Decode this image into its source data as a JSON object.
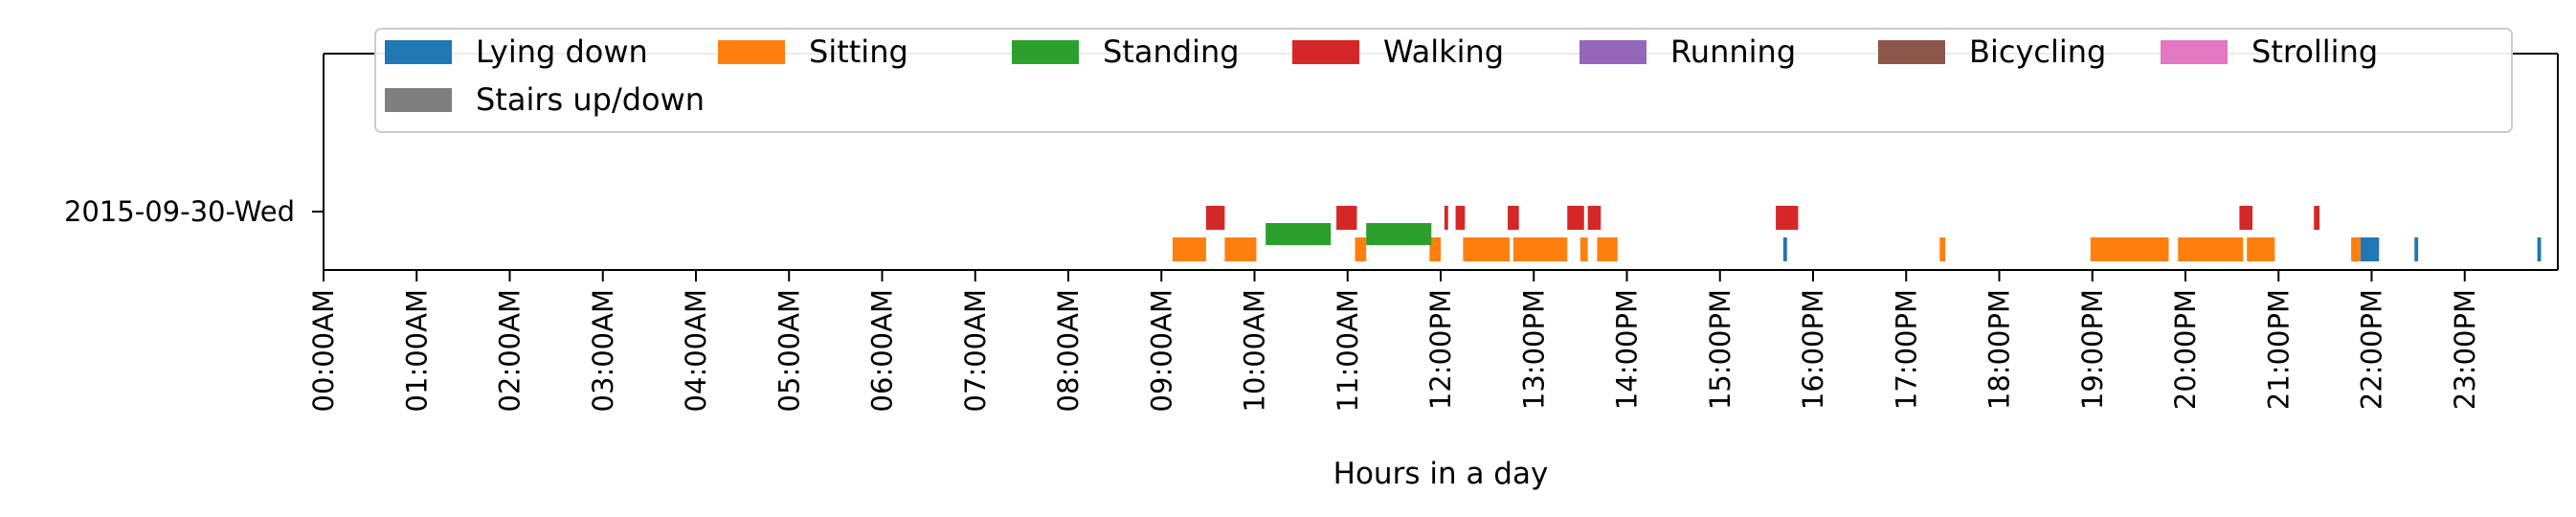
{
  "chart_data": {
    "type": "timeline",
    "title": "",
    "xlabel": "Hours in a day",
    "ylabel": "",
    "xlim": [
      0,
      24
    ],
    "day_label": "2015-09-30-Wed",
    "x_tick_labels": [
      "00:00AM",
      "01:00AM",
      "02:00AM",
      "03:00AM",
      "04:00AM",
      "05:00AM",
      "06:00AM",
      "07:00AM",
      "08:00AM",
      "09:00AM",
      "10:00AM",
      "11:00AM",
      "12:00PM",
      "13:00PM",
      "14:00PM",
      "15:00PM",
      "16:00PM",
      "17:00PM",
      "18:00PM",
      "19:00PM",
      "20:00PM",
      "21:00PM",
      "22:00PM",
      "23:00PM"
    ],
    "legend_position": "top",
    "grid": false,
    "series": [
      {
        "name": "Lying down",
        "color": "#1f77b4",
        "lane": 0,
        "intervals": [
          [
            15.68,
            15.72
          ],
          [
            21.88,
            22.08
          ],
          [
            22.46,
            22.5
          ],
          [
            23.78,
            23.82
          ]
        ]
      },
      {
        "name": "Sitting",
        "color": "#ff7f0e",
        "lane": 0,
        "intervals": [
          [
            9.12,
            9.48
          ],
          [
            9.68,
            10.02
          ],
          [
            11.08,
            11.2
          ],
          [
            11.88,
            12.0
          ],
          [
            12.24,
            12.74
          ],
          [
            12.78,
            13.36
          ],
          [
            13.5,
            13.58
          ],
          [
            13.68,
            13.9
          ],
          [
            17.36,
            17.42
          ],
          [
            18.98,
            19.82
          ],
          [
            19.92,
            20.62
          ],
          [
            20.66,
            20.96
          ],
          [
            21.78,
            21.88
          ]
        ]
      },
      {
        "name": "Standing",
        "color": "#2ca02c",
        "lane": 1,
        "intervals": [
          [
            10.12,
            10.82
          ],
          [
            11.2,
            11.9
          ]
        ]
      },
      {
        "name": "Walking",
        "color": "#d62728",
        "lane": 2,
        "intervals": [
          [
            9.48,
            9.68
          ],
          [
            10.88,
            11.1
          ],
          [
            12.04,
            12.08
          ],
          [
            12.16,
            12.26
          ],
          [
            12.72,
            12.84
          ],
          [
            13.36,
            13.54
          ],
          [
            13.58,
            13.72
          ],
          [
            15.6,
            15.84
          ],
          [
            20.58,
            20.72
          ],
          [
            21.38,
            21.44
          ]
        ]
      },
      {
        "name": "Running",
        "color": "#9467bd",
        "lane": 3,
        "intervals": []
      },
      {
        "name": "Bicycling",
        "color": "#8c564b",
        "lane": 3,
        "intervals": []
      },
      {
        "name": "Strolling",
        "color": "#e377c2",
        "lane": 3,
        "intervals": []
      },
      {
        "name": "Stairs up/down",
        "color": "#7f7f7f",
        "lane": 3,
        "intervals": []
      }
    ]
  }
}
